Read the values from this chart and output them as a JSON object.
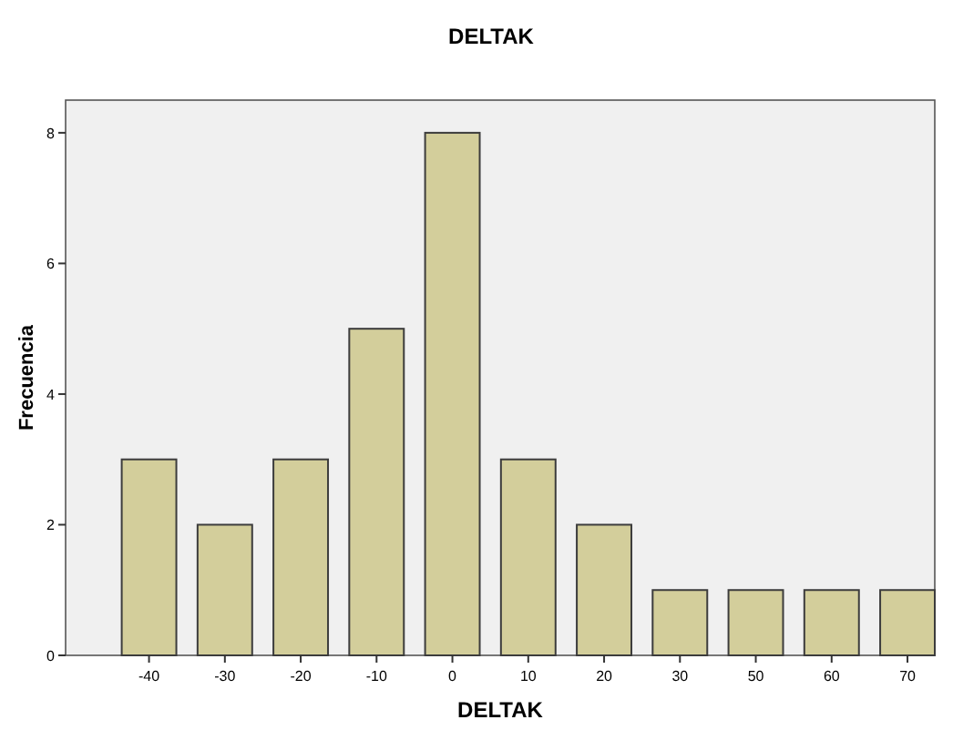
{
  "chart_data": {
    "type": "bar",
    "title": "DELTAK",
    "xlabel": "DELTAK",
    "ylabel": "Frecuencia",
    "categories": [
      "-40",
      "-30",
      "-20",
      "-10",
      "0",
      "10",
      "20",
      "30",
      "50",
      "60",
      "70"
    ],
    "values": [
      3,
      2,
      3,
      5,
      8,
      3,
      2,
      1,
      1,
      1,
      1
    ],
    "color": "#d3ce9b",
    "ylim": [
      0,
      8.5
    ],
    "yticks": [
      0,
      2,
      4,
      6,
      8
    ],
    "grid": false
  }
}
